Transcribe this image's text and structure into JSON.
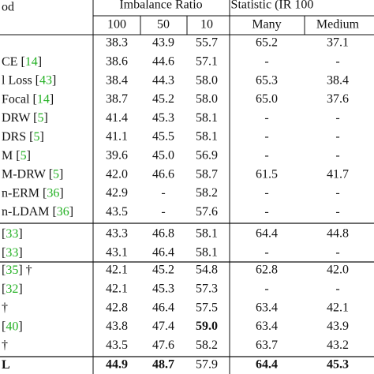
{
  "table": {
    "header": {
      "method": "od",
      "group1": "Imbalance Ratio",
      "group2": "Statistic (IR 100",
      "columns": [
        "100",
        "50",
        "10",
        "Many",
        "Medium"
      ]
    },
    "groups": [
      [
        {
          "method": [],
          "values": [
            "38.3",
            "43.9",
            "55.7",
            "65.2",
            "37.1"
          ],
          "bold": []
        },
        {
          "method": [
            {
              "t": "CE "
            },
            {
              "t": "["
            },
            {
              "t": "14",
              "green": true
            },
            {
              "t": "]"
            }
          ],
          "values": [
            "38.6",
            "44.6",
            "57.1",
            "-",
            "-"
          ],
          "bold": []
        },
        {
          "method": [
            {
              "t": "l Loss "
            },
            {
              "t": "["
            },
            {
              "t": "43",
              "green": true
            },
            {
              "t": "]"
            }
          ],
          "values": [
            "38.4",
            "44.3",
            "58.0",
            "65.3",
            "38.4"
          ],
          "bold": []
        },
        {
          "method": [
            {
              "t": "Focal "
            },
            {
              "t": "["
            },
            {
              "t": "14",
              "green": true
            },
            {
              "t": "]"
            }
          ],
          "values": [
            "38.7",
            "45.2",
            "58.0",
            "65.0",
            "37.6"
          ],
          "bold": []
        },
        {
          "method": [
            {
              "t": "DRW "
            },
            {
              "t": "["
            },
            {
              "t": "5",
              "green": true
            },
            {
              "t": "]"
            }
          ],
          "values": [
            "41.4",
            "45.3",
            "58.1",
            "-",
            "-"
          ],
          "bold": []
        },
        {
          "method": [
            {
              "t": "DRS "
            },
            {
              "t": "["
            },
            {
              "t": "5",
              "green": true
            },
            {
              "t": "]"
            }
          ],
          "values": [
            "41.1",
            "45.5",
            "58.1",
            "-",
            "-"
          ],
          "bold": []
        },
        {
          "method": [
            {
              "t": "M "
            },
            {
              "t": "["
            },
            {
              "t": "5",
              "green": true
            },
            {
              "t": "]"
            }
          ],
          "values": [
            "39.6",
            "45.0",
            "56.9",
            "-",
            "-"
          ],
          "bold": []
        },
        {
          "method": [
            {
              "t": "M-DRW "
            },
            {
              "t": "["
            },
            {
              "t": "5",
              "green": true
            },
            {
              "t": "]"
            }
          ],
          "values": [
            "42.0",
            "46.6",
            "58.7",
            "61.5",
            "41.7"
          ],
          "bold": []
        },
        {
          "method": [
            {
              "t": "n-ERM "
            },
            {
              "t": "["
            },
            {
              "t": "36",
              "green": true
            },
            {
              "t": "]"
            }
          ],
          "values": [
            "42.9",
            "-",
            "58.2",
            "-",
            "-"
          ],
          "bold": []
        },
        {
          "method": [
            {
              "t": "n-LDAM "
            },
            {
              "t": "["
            },
            {
              "t": "36",
              "green": true
            },
            {
              "t": "]"
            }
          ],
          "values": [
            "43.5",
            "-",
            "57.6",
            "-",
            "-"
          ],
          "bold": []
        }
      ],
      [
        {
          "method": [
            {
              "t": "["
            },
            {
              "t": "33",
              "green": true
            },
            {
              "t": "]"
            }
          ],
          "values": [
            "43.3",
            "46.8",
            "58.1",
            "64.4",
            "44.8"
          ],
          "bold": []
        },
        {
          "method": [
            {
              "t": "  ["
            },
            {
              "t": "33",
              "green": true
            },
            {
              "t": "]"
            }
          ],
          "values": [
            "43.1",
            "46.4",
            "58.1",
            "-",
            "-"
          ],
          "bold": []
        }
      ],
      [
        {
          "method": [
            {
              "t": "["
            },
            {
              "t": "35",
              "green": true
            },
            {
              "t": "] †"
            }
          ],
          "values": [
            "42.1",
            "45.2",
            "54.8",
            "62.8",
            "42.0"
          ],
          "bold": []
        },
        {
          "method": [
            {
              "t": "  ["
            },
            {
              "t": "32",
              "green": true
            },
            {
              "t": "]"
            }
          ],
          "values": [
            "42.1",
            "45.3",
            "57.3",
            "-",
            "-"
          ],
          "bold": []
        },
        {
          "method": [
            {
              "t": "†"
            }
          ],
          "values": [
            "42.8",
            "46.4",
            "57.5",
            "63.4",
            "42.1"
          ],
          "bold": []
        },
        {
          "method": [
            {
              "t": "["
            },
            {
              "t": "40",
              "green": true
            },
            {
              "t": "]"
            }
          ],
          "values": [
            "43.8",
            "47.4",
            "59.0",
            "63.4",
            "43.9"
          ],
          "bold": [
            2
          ]
        },
        {
          "method": [
            {
              "t": "†"
            }
          ],
          "values": [
            "43.5",
            "47.6",
            "58.2",
            "63.7",
            "43.2"
          ],
          "bold": []
        }
      ],
      [
        {
          "method": [
            {
              "t": "L"
            }
          ],
          "values": [
            "44.9",
            "48.7",
            "57.9",
            "64.4",
            "45.3"
          ],
          "bold": [
            0,
            1,
            3,
            4
          ],
          "method_bold": true
        }
      ]
    ]
  }
}
